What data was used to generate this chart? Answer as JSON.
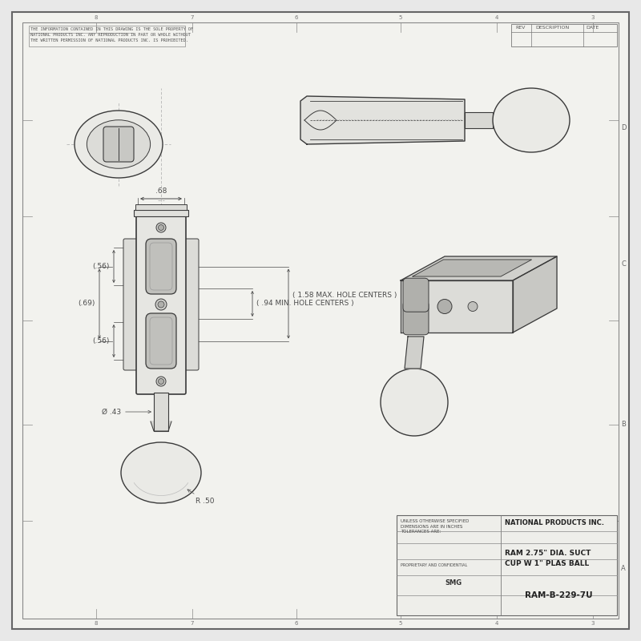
{
  "bg_color": "#e8e8e8",
  "paper_color": "#f2f2ee",
  "line_color": "#3a3a3a",
  "dim_color": "#4a4a4a",
  "title": "RAM 2.75\" DIA. SUCT\nCUP W 1\" PLAS BALL",
  "part_number": "RAM-B-229-7U",
  "company": "NATIONAL PRODUCTS INC.",
  "dim_68": ".68",
  "dim_56a": "(.56)",
  "dim_69": "(.69)",
  "dim_56b": "(.56)",
  "dim_43": "Ø .43",
  "dim_r50": "R .50",
  "dim_158": "( 1.58 MAX. HOLE CENTERS )",
  "dim_94": "( .94 MIN. HOLE CENTERS )"
}
